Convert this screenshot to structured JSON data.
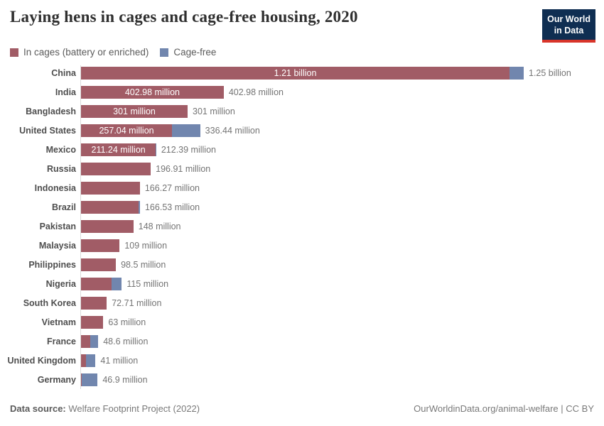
{
  "header": {
    "logo_line1": "Our World",
    "logo_line2": "in Data",
    "logo_bg_color": "#0f2e52",
    "logo_accent_color": "#d8352a"
  },
  "legend": {
    "items": [
      {
        "label": "In cages (battery or enriched)",
        "color": "#a15c66"
      },
      {
        "label": "Cage-free",
        "color": "#7186ae"
      }
    ]
  },
  "chart_data": {
    "type": "bar",
    "orientation": "horizontal",
    "stacked": true,
    "title": "Laying hens in cages and cage-free housing, 2020",
    "xlabel": "",
    "ylabel": "",
    "unit": "laying hens",
    "x_max_millions": 1250,
    "grid": false,
    "legend_position": "top-left",
    "series_names": [
      "In cages (battery or enriched)",
      "Cage-free"
    ],
    "colors": {
      "cages": "#a15c66",
      "cage_free": "#7186ae"
    },
    "rows": [
      {
        "country": "China",
        "cages_m": 1210,
        "cage_free_m": 40,
        "bar_label": "1.21 billion",
        "total_label": "1.25 billion"
      },
      {
        "country": "India",
        "cages_m": 402.98,
        "cage_free_m": 0,
        "bar_label": "402.98 million",
        "total_label": "402.98 million"
      },
      {
        "country": "Bangladesh",
        "cages_m": 301,
        "cage_free_m": 0,
        "bar_label": "301 million",
        "total_label": "301 million"
      },
      {
        "country": "United States",
        "cages_m": 257.04,
        "cage_free_m": 79.4,
        "bar_label": "257.04 million",
        "total_label": "336.44 million"
      },
      {
        "country": "Mexico",
        "cages_m": 211.24,
        "cage_free_m": 1.15,
        "bar_label": "211.24 million",
        "total_label": "212.39 million"
      },
      {
        "country": "Russia",
        "cages_m": 196.91,
        "cage_free_m": 0,
        "bar_label": null,
        "total_label": "196.91 million"
      },
      {
        "country": "Indonesia",
        "cages_m": 166.27,
        "cage_free_m": 0,
        "bar_label": null,
        "total_label": "166.27 million"
      },
      {
        "country": "Brazil",
        "cages_m": 162.9,
        "cage_free_m": 3.63,
        "bar_label": null,
        "total_label": "166.53 million"
      },
      {
        "country": "Pakistan",
        "cages_m": 148,
        "cage_free_m": 0,
        "bar_label": null,
        "total_label": "148 million"
      },
      {
        "country": "Malaysia",
        "cages_m": 109,
        "cage_free_m": 0,
        "bar_label": null,
        "total_label": "109 million"
      },
      {
        "country": "Philippines",
        "cages_m": 98.5,
        "cage_free_m": 0,
        "bar_label": null,
        "total_label": "98.5 million"
      },
      {
        "country": "Nigeria",
        "cages_m": 86,
        "cage_free_m": 29,
        "bar_label": null,
        "total_label": "115 million"
      },
      {
        "country": "South Korea",
        "cages_m": 72.71,
        "cage_free_m": 0,
        "bar_label": null,
        "total_label": "72.71 million"
      },
      {
        "country": "Vietnam",
        "cages_m": 63,
        "cage_free_m": 0,
        "bar_label": null,
        "total_label": "63 million"
      },
      {
        "country": "France",
        "cages_m": 26.7,
        "cage_free_m": 21.9,
        "bar_label": null,
        "total_label": "48.6 million"
      },
      {
        "country": "United Kingdom",
        "cages_m": 15,
        "cage_free_m": 26,
        "bar_label": null,
        "total_label": "41 million"
      },
      {
        "country": "Germany",
        "cages_m": 2.9,
        "cage_free_m": 44,
        "bar_label": null,
        "total_label": "46.9 million"
      }
    ]
  },
  "footer": {
    "source_label": "Data source:",
    "source_value": "Welfare Footprint Project (2022)",
    "link": "OurWorldinData.org/animal-welfare | CC BY"
  }
}
